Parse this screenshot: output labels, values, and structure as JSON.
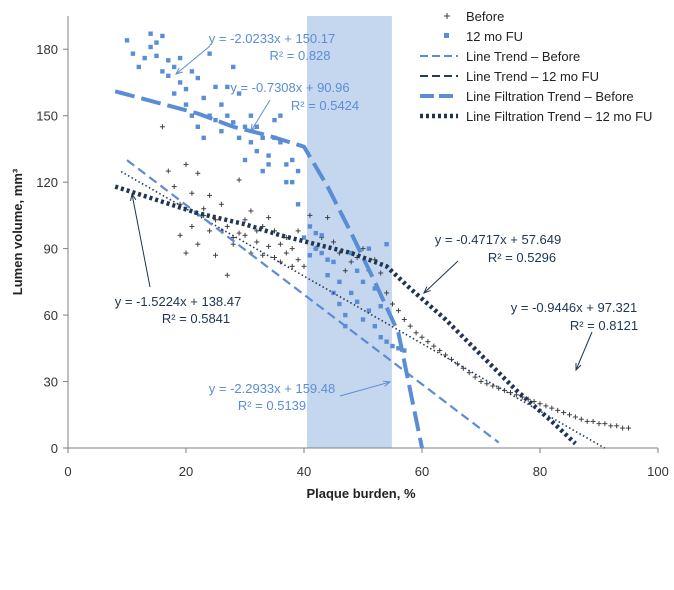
{
  "chart_data": {
    "type": "scatter",
    "xlabel": "Plaque burden, %",
    "ylabel": "Lumen volume, mm³",
    "xlim": [
      0,
      100
    ],
    "ylim": [
      0,
      195
    ],
    "x_ticks": [
      "0",
      "20",
      "40",
      "60",
      "80",
      "100"
    ],
    "y_ticks": [
      "0",
      "30",
      "60",
      "90",
      "120",
      "150",
      "180"
    ],
    "grid": false,
    "legend_position": "top-right",
    "highlight_band": {
      "x_start": 40.5,
      "x_end": 54.9,
      "color": "#c5d7ee"
    },
    "series": [
      {
        "name": "Before",
        "marker": "plus",
        "color": "#404040",
        "x": [
          16,
          17,
          18,
          19,
          19,
          20,
          20,
          21,
          21,
          22,
          22,
          23,
          23,
          24,
          24,
          25,
          25,
          26,
          26,
          27,
          27,
          28,
          28,
          29,
          29,
          30,
          30,
          31,
          31,
          32,
          32,
          33,
          33,
          34,
          34,
          35,
          35,
          36,
          36,
          37,
          37,
          38,
          38,
          39,
          39,
          40,
          41,
          42,
          43,
          44,
          45,
          46,
          47,
          48,
          49,
          50,
          51,
          52,
          53,
          54,
          55,
          56,
          57,
          58,
          59,
          60,
          61,
          62,
          63,
          64,
          65,
          66,
          67,
          68,
          69,
          70,
          71,
          72,
          73,
          74,
          75,
          76,
          77,
          78,
          79,
          80,
          81,
          82,
          83,
          84,
          85,
          86,
          87,
          88,
          89,
          90,
          91,
          92,
          93,
          94,
          95
        ],
        "y": [
          145,
          125,
          118,
          96,
          110,
          88,
          128,
          115,
          100,
          124,
          92,
          108,
          105,
          114,
          98,
          103,
          87,
          98,
          110,
          100,
          78,
          92,
          95,
          121,
          97,
          96,
          103,
          88,
          107,
          93,
          98,
          100,
          87,
          91,
          104,
          98,
          86,
          92,
          84,
          95,
          88,
          90,
          82,
          98,
          85,
          82,
          105,
          90,
          95,
          104,
          93,
          88,
          80,
          84,
          86,
          90,
          80,
          85,
          79,
          70,
          65,
          62,
          58,
          55,
          52,
          50,
          48,
          46,
          44,
          42,
          40,
          38,
          36,
          34,
          32,
          30,
          29,
          28,
          27,
          26,
          25,
          24,
          23,
          22,
          21,
          20,
          19,
          18,
          17,
          16,
          15,
          14,
          13,
          12,
          12,
          11,
          11,
          10,
          10,
          9,
          9
        ]
      },
      {
        "name": "12 mo FU",
        "marker": "square",
        "color": "#5b8dd6",
        "x": [
          10,
          11,
          12,
          13,
          14,
          14,
          15,
          15,
          16,
          16,
          17,
          17,
          18,
          18,
          19,
          19,
          20,
          20,
          21,
          21,
          22,
          22,
          23,
          23,
          24,
          24,
          25,
          25,
          26,
          26,
          27,
          27,
          28,
          28,
          29,
          29,
          30,
          30,
          31,
          31,
          32,
          32,
          33,
          33,
          34,
          34,
          35,
          35,
          36,
          36,
          37,
          37,
          38,
          38,
          39,
          39,
          40,
          41,
          41,
          42,
          42,
          43,
          43,
          44,
          44,
          45,
          45,
          46,
          46,
          47,
          47,
          48,
          48,
          49,
          49,
          50,
          50,
          51,
          51,
          52,
          52,
          53,
          53,
          54,
          54,
          55,
          56,
          57
        ],
        "y": [
          184,
          178,
          172,
          176,
          181,
          187,
          177,
          183,
          186,
          170,
          175,
          168,
          172,
          160,
          176,
          165,
          155,
          162,
          170,
          150,
          167,
          145,
          158,
          140,
          150,
          178,
          148,
          163,
          155,
          143,
          163,
          150,
          147,
          172,
          140,
          160,
          145,
          130,
          150,
          138,
          134,
          145,
          140,
          125,
          132,
          128,
          148,
          140,
          138,
          150,
          128,
          120,
          120,
          130,
          125,
          110,
          95,
          100,
          87,
          97,
          90,
          88,
          96,
          78,
          85,
          70,
          84,
          65,
          75,
          60,
          55,
          88,
          70,
          80,
          66,
          75,
          58,
          90,
          62,
          55,
          72,
          50,
          64,
          48,
          92,
          46,
          45,
          44
        ]
      }
    ],
    "trendlines": [
      {
        "name": "Line Trend – Before",
        "series": "Before",
        "slope": -1.5224,
        "intercept": 138.47,
        "x_range": [
          9,
          95
        ],
        "equation": "y = -1.5224x + 138.47",
        "r2": "R² = 0.5841",
        "color": "#223b5a",
        "style": "dotted-fine"
      },
      {
        "name": "Line Trend – 12 mo FU",
        "series": "12 mo FU",
        "slope": -2.0233,
        "intercept": 150.17,
        "x_range": [
          10,
          73
        ],
        "equation": "y = -2.0233x + 150.17",
        "r2": "R² = 0.828",
        "color": "#5b8dd6",
        "style": "dashed"
      },
      {
        "name": "Line Filtration Trend – Before",
        "series": "12 mo FU",
        "segments": [
          {
            "slope": -0.7308,
            "intercept": 90.96,
            "equation": "y = -0.7308x + 90.96",
            "r2": "R² = 0.5424"
          },
          {
            "slope": -2.2933,
            "intercept": 159.48,
            "equation": "y = -2.2933x + 159.48",
            "r2": "R² = 0.5139"
          }
        ],
        "color": "#5b8dd6",
        "style": "long-dash"
      },
      {
        "name": "Line Filtration Trend – 12 mo FU",
        "series": "Before",
        "segments": [
          {
            "slope": -0.4717,
            "intercept": 57.649,
            "equation": "y = -0.4717x + 57.649",
            "r2": "R² = 0.5296"
          },
          {
            "slope": -0.9446,
            "intercept": 97.321,
            "equation": "y = -0.9446x + 97.321",
            "r2": "R² = 0.8121"
          }
        ],
        "color": "#1f3552",
        "style": "heavy-dots"
      }
    ],
    "legend": [
      {
        "label": "Before",
        "symbol": "plus",
        "color": "#404040"
      },
      {
        "label": "12 mo FU",
        "symbol": "square",
        "color": "#5b8dd6"
      },
      {
        "label": "Line Trend – Before",
        "symbol": "dashed",
        "color": "#5b8dd6"
      },
      {
        "label": "Line Trend – 12 mo FU",
        "symbol": "dashed-dark",
        "color": "#223b5a"
      },
      {
        "label": "Line Filtration Trend – Before",
        "symbol": "long-dash",
        "color": "#5b8dd6"
      },
      {
        "label": "Line Filtration Trend – 12 mo FU",
        "symbol": "heavy-dots",
        "color": "#1f3552"
      }
    ],
    "annotations": [
      {
        "eq": "y = -2.0233x + 150.17",
        "r2": "R² = 0.828",
        "color": "#5b8dd6"
      },
      {
        "eq": "y = -0.7308x + 90.96",
        "r2": "R² = 0.5424",
        "color": "#5b8dd6"
      },
      {
        "eq": "y = -0.4717x + 57.649",
        "r2": "R² = 0.5296",
        "color": "#1f3552"
      },
      {
        "eq": "y = -0.9446x + 97.321",
        "r2": "R² = 0.8121",
        "color": "#1f3552"
      },
      {
        "eq": "y = -1.5224x + 138.47",
        "r2": "R² = 0.5841",
        "color": "#1f3552"
      },
      {
        "eq": "y = -2.2933x + 159.48",
        "r2": "R² = 0.5139",
        "color": "#5b8dd6"
      }
    ]
  }
}
